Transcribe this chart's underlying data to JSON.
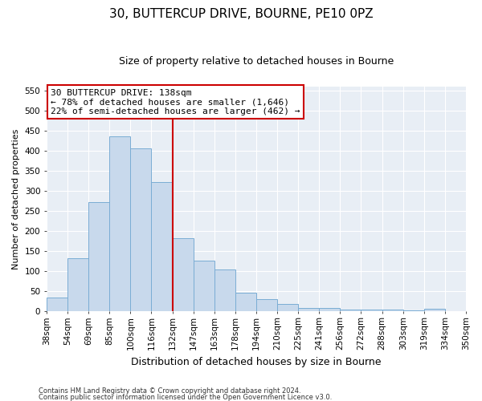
{
  "title1": "30, BUTTERCUP DRIVE, BOURNE, PE10 0PZ",
  "title2": "Size of property relative to detached houses in Bourne",
  "xlabel": "Distribution of detached houses by size in Bourne",
  "ylabel": "Number of detached properties",
  "bar_color": "#c8d9ec",
  "bar_edge_color": "#7aadd4",
  "categories": [
    "38sqm",
    "54sqm",
    "69sqm",
    "85sqm",
    "100sqm",
    "116sqm",
    "132sqm",
    "147sqm",
    "163sqm",
    "178sqm",
    "194sqm",
    "210sqm",
    "225sqm",
    "241sqm",
    "256sqm",
    "272sqm",
    "288sqm",
    "303sqm",
    "319sqm",
    "334sqm",
    "350sqm"
  ],
  "values": [
    35,
    133,
    272,
    436,
    405,
    322,
    183,
    126,
    104,
    46,
    30,
    18,
    8,
    9,
    4,
    5,
    4,
    2,
    7,
    0
  ],
  "ylim": [
    0,
    560
  ],
  "yticks": [
    0,
    50,
    100,
    150,
    200,
    250,
    300,
    350,
    400,
    450,
    500,
    550
  ],
  "annotation_title": "30 BUTTERCUP DRIVE: 138sqm",
  "annotation_line1": "← 78% of detached houses are smaller (1,646)",
  "annotation_line2": "22% of semi-detached houses are larger (462) →",
  "annotation_box_facecolor": "#ffffff",
  "annotation_box_edgecolor": "#cc0000",
  "vline_color": "#cc0000",
  "footer1": "Contains HM Land Registry data © Crown copyright and database right 2024.",
  "footer2": "Contains public sector information licensed under the Open Government Licence v3.0.",
  "bg_color": "#ffffff",
  "plot_bg_color": "#e8eef5",
  "grid_color": "#ffffff",
  "title1_fontsize": 11,
  "title2_fontsize": 9,
  "ylabel_fontsize": 8,
  "xlabel_fontsize": 9,
  "tick_fontsize": 7.5,
  "ann_fontsize": 8
}
